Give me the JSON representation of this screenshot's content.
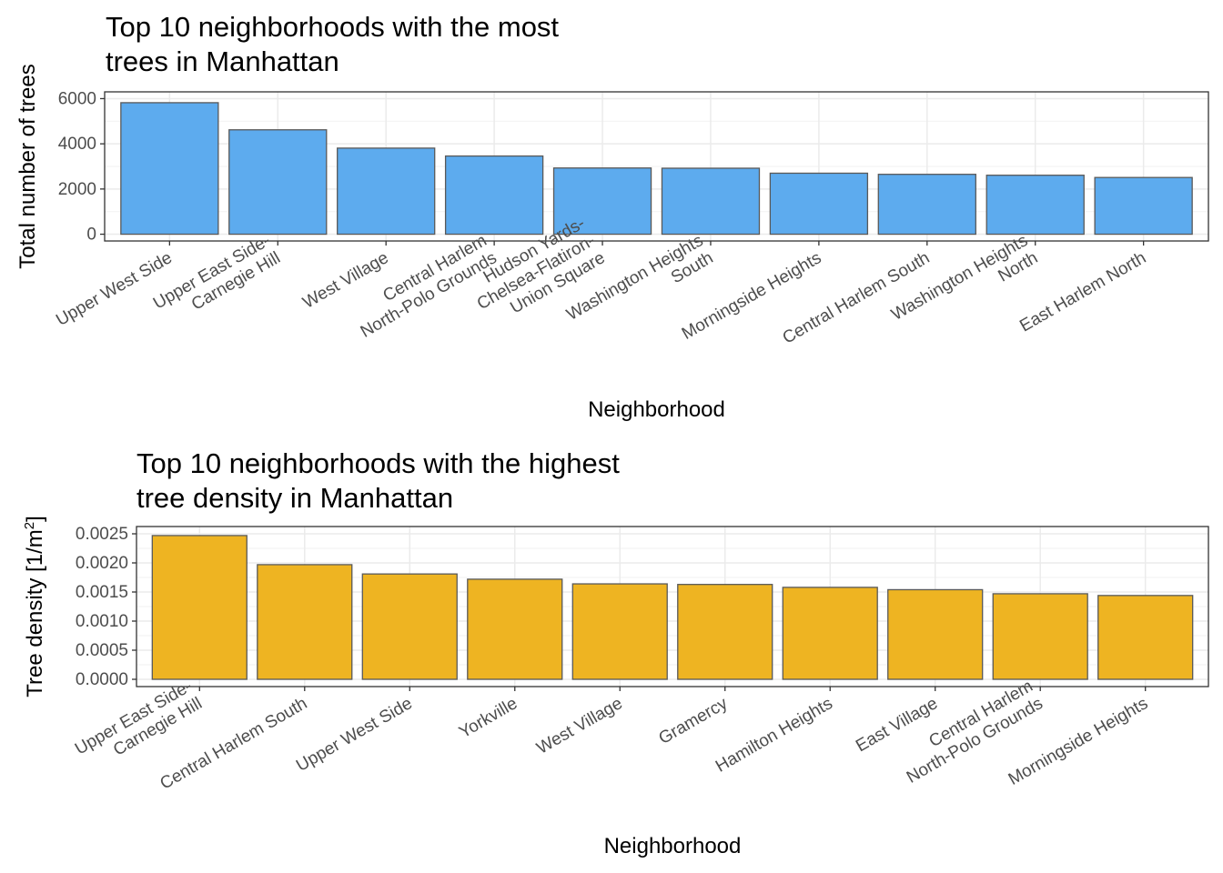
{
  "chart_data": [
    {
      "type": "bar",
      "title_lines": [
        "Top 10 neighborhoods with the most",
        "trees in Manhattan"
      ],
      "xlabel": "Neighborhood",
      "ylabel": "Total number of trees",
      "ylim": [
        0,
        6000
      ],
      "yticks": [
        0,
        2000,
        4000,
        6000
      ],
      "ytick_labels": [
        "0",
        "2000",
        "4000",
        "6000"
      ],
      "grid": true,
      "bar_color": "#5dabee",
      "categories": [
        [
          "Upper West Side"
        ],
        [
          "Upper East Side-",
          "Carnegie Hill"
        ],
        [
          "West Village"
        ],
        [
          "Central Harlem",
          "North-Polo Grounds"
        ],
        [
          "Hudson Yards-",
          "Chelsea-Flatiron-",
          "Union Square"
        ],
        [
          "Washington Heights",
          "South"
        ],
        [
          "Morningside Heights"
        ],
        [
          "Central Harlem South"
        ],
        [
          "Washington Heights",
          "North"
        ],
        [
          "East Harlem North"
        ]
      ],
      "values": [
        5820,
        4620,
        3810,
        3460,
        2930,
        2920,
        2700,
        2650,
        2610,
        2510
      ]
    },
    {
      "type": "bar",
      "title_lines": [
        "Top 10 neighborhoods with the highest",
        "tree density in Manhattan"
      ],
      "xlabel": "Neighborhood",
      "ylabel_main": "Tree density ",
      "ylabel_unit": "1/m",
      "ylabel_sup": "2",
      "ylim": [
        0,
        0.0025
      ],
      "yticks": [
        0,
        0.0005,
        0.001,
        0.0015,
        0.002,
        0.0025
      ],
      "ytick_labels": [
        "0.0000",
        "0.0005",
        "0.0010",
        "0.0015",
        "0.0020",
        "0.0025"
      ],
      "grid": true,
      "bar_color": "#eeb422",
      "categories": [
        [
          "Upper East Side-",
          "Carnegie Hill"
        ],
        [
          "Central Harlem South"
        ],
        [
          "Upper West Side"
        ],
        [
          "Yorkville"
        ],
        [
          "West Village"
        ],
        [
          "Gramercy"
        ],
        [
          "Hamilton Heights"
        ],
        [
          "East Village"
        ],
        [
          "Central Harlem",
          "North-Polo Grounds"
        ],
        [
          "Morningside Heights"
        ]
      ],
      "values": [
        0.00247,
        0.00197,
        0.00181,
        0.00172,
        0.00164,
        0.00163,
        0.00158,
        0.00154,
        0.00147,
        0.00144
      ]
    }
  ]
}
